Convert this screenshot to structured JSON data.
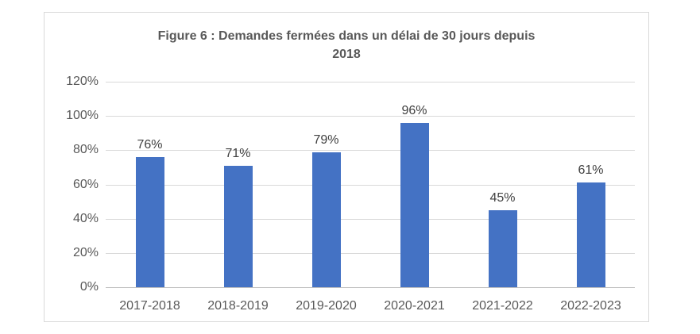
{
  "chart_data": {
    "type": "bar",
    "title": "Figure 6 : Demandes fermées dans un délai de 30 jours depuis 2018",
    "title_lines": [
      "Figure 6 : Demandes fermées dans un délai de 30 jours depuis",
      "2018"
    ],
    "categories": [
      "2017-2018",
      "2018-2019",
      "2019-2020",
      "2020-2021",
      "2021-2022",
      "2022-2023"
    ],
    "values": [
      76,
      71,
      79,
      96,
      45,
      61
    ],
    "value_labels": [
      "76%",
      "71%",
      "79%",
      "96%",
      "45%",
      "61%"
    ],
    "y_ticks": [
      "0%",
      "20%",
      "40%",
      "60%",
      "80%",
      "100%",
      "120%"
    ],
    "y_tick_values": [
      0,
      20,
      40,
      60,
      80,
      100,
      120
    ],
    "ylim": [
      0,
      120
    ],
    "xlabel": "",
    "ylabel": "",
    "grid": true,
    "legend": "none",
    "colors": {
      "bar": "#4472C4",
      "gridline": "#D9D9D9",
      "axis_line": "#BFBFBF",
      "frame_border": "#D9D9D9",
      "title_text": "#595959",
      "tick_text": "#595959",
      "data_label_text": "#404040",
      "background": "#FFFFFF"
    }
  }
}
